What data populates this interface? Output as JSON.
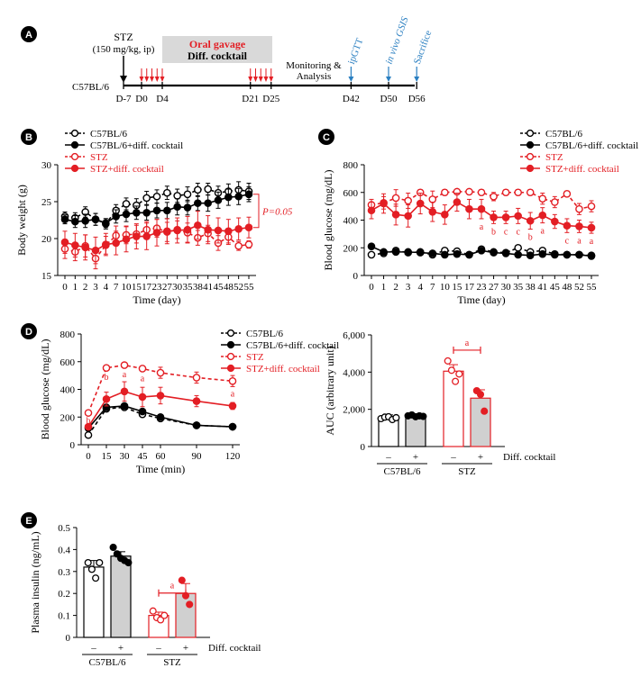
{
  "colors": {
    "black": "#000000",
    "red": "#e31e24",
    "blue": "#2a7fc1",
    "gavage_box": "#d9d9d9",
    "bar_gray": "#d0d0d0"
  },
  "panel_labels": [
    "A",
    "B",
    "C",
    "D",
    "E"
  ],
  "timeline": {
    "strain": "C57BL/6",
    "stz_label": "STZ",
    "stz_dose": "(150 mg/kg, ip)",
    "gavage_title": "Oral gavage",
    "gavage_sub": "Diff. cocktail",
    "monitoring": "Monitoring &",
    "analysis": "Analysis",
    "days": [
      {
        "label": "D-7",
        "d": -7
      },
      {
        "label": "D0",
        "d": 0
      },
      {
        "label": "D4",
        "d": 4
      },
      {
        "label": "D21",
        "d": 21
      },
      {
        "label": "D25",
        "d": 25
      },
      {
        "label": "D42",
        "d": 42
      },
      {
        "label": "D50",
        "d": 50
      },
      {
        "label": "D56",
        "d": 56
      }
    ],
    "events": [
      {
        "label": "ipGTT",
        "d": 42
      },
      {
        "label": "in vivo GSIS",
        "d": 50
      },
      {
        "label": "Sacrifice",
        "d": 56
      }
    ],
    "gavage_days": [
      0,
      1,
      2,
      3,
      4,
      21,
      22,
      23,
      24,
      25
    ]
  },
  "chart_data": [
    {
      "id": "B",
      "type": "line",
      "xlabel": "Time (day)",
      "ylabel": "Body weight (g)",
      "x": [
        "0",
        "1",
        "2",
        "3",
        "4",
        "7",
        "10",
        "15",
        "17",
        "23",
        "27",
        "30",
        "35",
        "38",
        "41",
        "45",
        "48",
        "52",
        "55"
      ],
      "ylim": [
        15,
        30
      ],
      "yticks": [
        15,
        20,
        25,
        30
      ],
      "legend": [
        "C57BL/6",
        "C57BL/6+diff. cocktail",
        "STZ",
        "STZ+diff. cocktail"
      ],
      "annotation": "P=0.05",
      "series": [
        {
          "name": "C57BL/6",
          "color": "#000000",
          "open": true,
          "dashed": true,
          "values": [
            23.0,
            22.8,
            23.6,
            22.6,
            22.0,
            23.8,
            24.7,
            24.5,
            25.5,
            25.7,
            26.2,
            25.8,
            26.0,
            26.6,
            26.7,
            26.2,
            26.4,
            26.6,
            26.4
          ],
          "err": [
            0.6,
            0.7,
            0.7,
            0.8,
            0.7,
            0.8,
            0.8,
            0.9,
            0.9,
            0.9,
            0.9,
            0.9,
            1.0,
            0.9,
            0.8,
            0.9,
            1.0,
            1.1,
            1.1
          ]
        },
        {
          "name": "C57BL/6+diff. cocktail",
          "color": "#000000",
          "open": false,
          "dashed": false,
          "values": [
            22.6,
            22.3,
            22.4,
            22.6,
            22.1,
            23.0,
            23.3,
            23.5,
            23.5,
            23.8,
            23.8,
            24.3,
            24.2,
            24.8,
            24.8,
            25.2,
            25.6,
            25.7,
            26.0
          ],
          "err": [
            0.6,
            0.8,
            0.9,
            0.8,
            0.6,
            0.9,
            1.0,
            0.9,
            1.0,
            1.0,
            1.1,
            1.1,
            1.0,
            1.0,
            1.1,
            1.1,
            1.1,
            1.1,
            1.0
          ]
        },
        {
          "name": "STZ",
          "color": "#e31e24",
          "open": true,
          "dashed": true,
          "values": [
            18.6,
            18.2,
            19.0,
            17.3,
            19.1,
            20.4,
            20.5,
            20.6,
            21.2,
            21.4,
            20.9,
            21.2,
            20.8,
            20.1,
            20.7,
            19.4,
            20.2,
            19.0,
            19.2
          ],
          "err": [
            1.3,
            1.2,
            1.5,
            1.4,
            1.2,
            1.3,
            1.2,
            1.2,
            1.1,
            1.2,
            1.3,
            1.2,
            1.3,
            1.0,
            1.1,
            1.0,
            1.0,
            0.6,
            0.5
          ]
        },
        {
          "name": "STZ+diff. cocktail",
          "color": "#e31e24",
          "open": false,
          "dashed": false,
          "values": [
            19.5,
            19.1,
            18.8,
            18.4,
            19.2,
            19.4,
            19.9,
            20.3,
            20.3,
            20.8,
            21.0,
            21.1,
            21.2,
            21.8,
            21.2,
            21.1,
            21.0,
            21.3,
            21.5
          ],
          "err": [
            1.5,
            1.6,
            1.7,
            1.8,
            1.5,
            1.6,
            1.7,
            1.7,
            1.8,
            1.8,
            1.7,
            1.7,
            1.8,
            1.9,
            1.9,
            1.7,
            1.6,
            1.5,
            1.4
          ]
        }
      ]
    },
    {
      "id": "C",
      "type": "line",
      "xlabel": "Time (day)",
      "ylabel": "Blood glucose (mg/dL)",
      "x": [
        "0",
        "1",
        "2",
        "3",
        "4",
        "7",
        "10",
        "15",
        "17",
        "23",
        "27",
        "30",
        "35",
        "38",
        "41",
        "45",
        "48",
        "52",
        "55"
      ],
      "ylim": [
        0,
        800
      ],
      "yticks": [
        0,
        200,
        400,
        600,
        800
      ],
      "legend": [
        "C57BL/6",
        "C57BL/6+diff. cocktail",
        "STZ",
        "STZ+diff. cocktail"
      ],
      "sig_labels": [
        {
          "i": 9,
          "t": "a"
        },
        {
          "i": 10,
          "t": "b"
        },
        {
          "i": 11,
          "t": "c"
        },
        {
          "i": 12,
          "t": "c"
        },
        {
          "i": 13,
          "t": "b"
        },
        {
          "i": 14,
          "t": "a"
        },
        {
          "i": 16,
          "t": "c"
        },
        {
          "i": 17,
          "t": "a"
        },
        {
          "i": 18,
          "t": "a"
        }
      ],
      "series": [
        {
          "name": "C57BL/6",
          "color": "#000000",
          "open": true,
          "dashed": true,
          "values": [
            150,
            160,
            180,
            165,
            170,
            150,
            180,
            175,
            150,
            190,
            170,
            165,
            200,
            170,
            180,
            155,
            150,
            150,
            145
          ],
          "err": [
            10,
            10,
            10,
            10,
            10,
            10,
            10,
            10,
            10,
            10,
            10,
            10,
            10,
            10,
            10,
            10,
            10,
            10,
            10
          ]
        },
        {
          "name": "C57BL/6+diff. cocktail",
          "color": "#000000",
          "open": false,
          "dashed": false,
          "values": [
            210,
            170,
            170,
            170,
            165,
            160,
            150,
            155,
            150,
            180,
            165,
            160,
            150,
            145,
            155,
            150,
            150,
            150,
            140
          ],
          "err": [
            15,
            10,
            10,
            10,
            10,
            10,
            10,
            10,
            10,
            10,
            10,
            10,
            10,
            10,
            10,
            10,
            10,
            10,
            10
          ]
        },
        {
          "name": "STZ",
          "color": "#e31e24",
          "open": true,
          "dashed": true,
          "values": [
            510,
            525,
            560,
            540,
            600,
            550,
            600,
            605,
            605,
            600,
            570,
            600,
            600,
            600,
            555,
            530,
            590,
            480,
            500
          ],
          "err": [
            40,
            45,
            60,
            55,
            20,
            60,
            20,
            15,
            15,
            20,
            30,
            20,
            20,
            20,
            40,
            40,
            20,
            40,
            40
          ]
        },
        {
          "name": "STZ+diff. cocktail",
          "color": "#e31e24",
          "open": false,
          "dashed": false,
          "values": [
            470,
            520,
            440,
            430,
            520,
            460,
            440,
            530,
            480,
            480,
            420,
            420,
            430,
            395,
            435,
            390,
            360,
            355,
            345
          ],
          "err": [
            60,
            70,
            75,
            80,
            75,
            70,
            70,
            65,
            70,
            70,
            45,
            45,
            55,
            60,
            55,
            50,
            50,
            45,
            40
          ]
        }
      ]
    },
    {
      "id": "D-left",
      "type": "line",
      "xlabel": "Time (min)",
      "ylabel": "Blood glucose (mg/dL)",
      "x": [
        0,
        15,
        30,
        45,
        60,
        90,
        120
      ],
      "ylim": [
        0,
        800
      ],
      "yticks": [
        0,
        200,
        400,
        600,
        800
      ],
      "legend": [
        "C57BL/6",
        "C57BL/6+diff. cocktail",
        "STZ",
        "STZ+diff. cocktail"
      ],
      "sig_labels": [
        {
          "i": 0,
          "t": "b"
        },
        {
          "i": 1,
          "t": "b"
        },
        {
          "i": 2,
          "t": "a"
        },
        {
          "i": 3,
          "t": "a"
        },
        {
          "i": 6,
          "t": "a"
        }
      ],
      "series": [
        {
          "name": "C57BL/6",
          "color": "#000000",
          "open": true,
          "dashed": true,
          "values": [
            70,
            260,
            270,
            220,
            190,
            140,
            130
          ],
          "err": [
            5,
            10,
            10,
            10,
            10,
            10,
            10
          ]
        },
        {
          "name": "C57BL/6+diff. cocktail",
          "color": "#000000",
          "open": false,
          "dashed": false,
          "values": [
            120,
            270,
            280,
            240,
            200,
            140,
            130
          ],
          "err": [
            8,
            10,
            10,
            10,
            10,
            10,
            10
          ]
        },
        {
          "name": "STZ",
          "color": "#e31e24",
          "open": true,
          "dashed": true,
          "values": [
            230,
            555,
            575,
            550,
            520,
            485,
            460
          ],
          "err": [
            15,
            15,
            15,
            20,
            40,
            40,
            40
          ]
        },
        {
          "name": "STZ+diff. cocktail",
          "color": "#e31e24",
          "open": false,
          "dashed": false,
          "values": [
            130,
            330,
            385,
            345,
            355,
            315,
            280
          ],
          "err": [
            15,
            50,
            70,
            70,
            60,
            40,
            25
          ]
        }
      ]
    },
    {
      "id": "D-right",
      "type": "bar",
      "ylabel": "AUC (arbitrary unit)",
      "ylim": [
        0,
        6000
      ],
      "yticks": [
        "0",
        "2,000",
        "4,000",
        "6,000"
      ],
      "group_labels": [
        "C57BL/6",
        "STZ"
      ],
      "treat_labels": [
        "–",
        "+",
        "–",
        "+"
      ],
      "treat_title": "Diff. cocktail",
      "sig_label": "a",
      "bars": [
        {
          "value": 1550,
          "err": 150,
          "color": "#000000",
          "fill": "#ffffff",
          "points": [
            1500,
            1580,
            1600,
            1450,
            1550
          ]
        },
        {
          "value": 1650,
          "err": 80,
          "color": "#000000",
          "fill": "#d0d0d0",
          "points": [
            1650,
            1700,
            1600,
            1650,
            1620
          ]
        },
        {
          "value": 4050,
          "err": 350,
          "color": "#e31e24",
          "fill": "#ffffff",
          "points": [
            4600,
            4100,
            3500,
            3900
          ]
        },
        {
          "value": 2600,
          "err": 450,
          "color": "#e31e24",
          "fill": "#d0d0d0",
          "points": [
            3000,
            2800,
            1900
          ]
        }
      ]
    },
    {
      "id": "E",
      "type": "bar",
      "ylabel": "Plasma insulin (ng/mL)",
      "ylim": [
        0,
        0.5
      ],
      "yticks": [
        "0",
        "0.1",
        "0.2",
        "0.3",
        "0.4",
        "0.5"
      ],
      "group_labels": [
        "C57BL/6",
        "STZ"
      ],
      "treat_labels": [
        "–",
        "+",
        "–",
        "+"
      ],
      "treat_title": "Diff. cocktail",
      "sig_label": "a",
      "bars": [
        {
          "value": 0.32,
          "err": 0.03,
          "color": "#000000",
          "fill": "#ffffff",
          "points": [
            0.34,
            0.31,
            0.27,
            0.34
          ]
        },
        {
          "value": 0.37,
          "err": 0.02,
          "color": "#000000",
          "fill": "#d0d0d0",
          "points": [
            0.41,
            0.38,
            0.36,
            0.35,
            0.34
          ]
        },
        {
          "value": 0.1,
          "err": 0.015,
          "color": "#e31e24",
          "fill": "#ffffff",
          "points": [
            0.12,
            0.09,
            0.08,
            0.1
          ]
        },
        {
          "value": 0.2,
          "err": 0.045,
          "color": "#e31e24",
          "fill": "#d0d0d0",
          "points": [
            0.26,
            0.19,
            0.15
          ]
        }
      ]
    }
  ]
}
